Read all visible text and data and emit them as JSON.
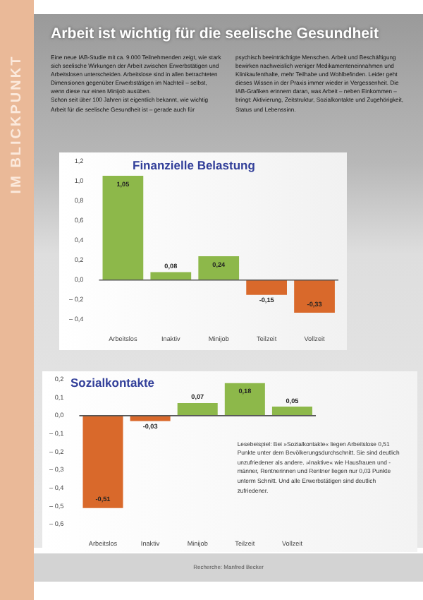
{
  "chart_data": [
    {
      "type": "other",
      "title": "Arbeit ist wichtig für die seelische Gesundheit",
      "subtitle": "IM BLICKPUNKT",
      "annotations": [
        "Eine neue IAB-Studie mit ca. 9.000 Teilnehmenden zeigt, wie stark sich seelische Wirkungen der Arbeit zwischen Erwerbstätigen und Arbeitslosen unterscheiden. Arbeitslose sind in allen betrachteten Dimensionen gegenüber Erwerbstätigen im Nachteil – selbst, wenn diese nur einen Minijob ausüben.",
        "Schon seit über 100 Jahren ist eigentlich bekannt, wie wichtig Arbeit für die seelische Gesundheit ist – gerade auch für psychisch beeinträchtigte Menschen. Arbeit und Beschäftigung bewirken nachweislich weniger Medikamenteneinnahmen und Klinikaufenthalte, mehr Teilhabe und Wohlbefinden. Leider geht dieses Wissen in der Praxis immer wieder in Vergessenheit. Die IAB-Grafiken erinnern daran, was Arbeit – neben Einkommen – bringt: Aktivierung, Zeitstruktur, Sozialkontakte und Zugehörigkeit, Status und Lebenssinn.",
        "Recherche: Manfred Becker"
      ]
    },
    {
      "type": "bar",
      "title": "Finanzielle Belastung",
      "categories": [
        "Arbeitslos",
        "Inaktiv",
        "Minijob",
        "Teilzeit",
        "Vollzeit"
      ],
      "values": [
        1.05,
        0.08,
        0.24,
        -0.15,
        -0.33
      ],
      "colors": [
        "#8db84a",
        "#8db84a",
        "#8db84a",
        "#d9692b",
        "#d9692b"
      ],
      "value_labels": [
        "1,05",
        "0,08",
        "0,24",
        "-0,15",
        "-0,33"
      ],
      "ylim": [
        -0.4,
        1.2
      ],
      "yticks": [
        {
          "value": -0.4,
          "label": "– 0,4"
        },
        {
          "value": -0.2,
          "label": "– 0,2"
        },
        {
          "value": 0,
          "label": "0,0"
        },
        {
          "value": 0.2,
          "label": "0,2"
        },
        {
          "value": 0.4,
          "label": "0,4"
        },
        {
          "value": 0.6,
          "label": "0,6"
        },
        {
          "value": 0.8,
          "label": "0,8"
        },
        {
          "value": 1,
          "label": "1,0"
        },
        {
          "value": 1.2,
          "label": "1,2"
        }
      ],
      "ref_lines": [
        {
          "axis": "y",
          "value": 0,
          "label": null
        }
      ]
    },
    {
      "type": "bar",
      "title": "Sozialkontakte",
      "categories": [
        "Arbeitslos",
        "Inaktiv",
        "Minijob",
        "Teilzeit",
        "Vollzeit"
      ],
      "values": [
        -0.51,
        -0.03,
        0.07,
        0.18,
        0.05
      ],
      "colors": [
        "#d9692b",
        "#d9692b",
        "#8db84a",
        "#8db84a",
        "#8db84a"
      ],
      "value_labels": [
        "-0,51",
        "-0,03",
        "0,07",
        "0,18",
        "0,05"
      ],
      "ylim": [
        -0.6,
        0.2
      ],
      "yticks": [
        {
          "value": -0.6,
          "label": "– 0,6"
        },
        {
          "value": -0.5,
          "label": "– 0,5"
        },
        {
          "value": -0.4,
          "label": "– 0,4"
        },
        {
          "value": -0.3,
          "label": "– 0,3"
        },
        {
          "value": -0.2,
          "label": "– 0,2"
        },
        {
          "value": -0.1,
          "label": "– 0,1"
        },
        {
          "value": 0,
          "label": "0,0"
        },
        {
          "value": 0.1,
          "label": "0,1"
        },
        {
          "value": 0.2,
          "label": "0,2"
        }
      ],
      "ref_lines": [
        {
          "axis": "y",
          "value": 0,
          "label": null
        }
      ],
      "annotations": [
        "Lesebeispiel: Bei »Sozialkontakte« liegen Arbeitslose 0,51 Punkte unter dem Bevölkerungsdurchschnitt. Sie sind deutlich unzufriedener als andere. »Inaktive« wie Hausfrauen und -männer, Rentnerinnen und Rentner liegen nur 0,03 Punkte unterm Schnitt. Und alle Erwerbstätigen sind deutlich zufriedener."
      ]
    }
  ]
}
